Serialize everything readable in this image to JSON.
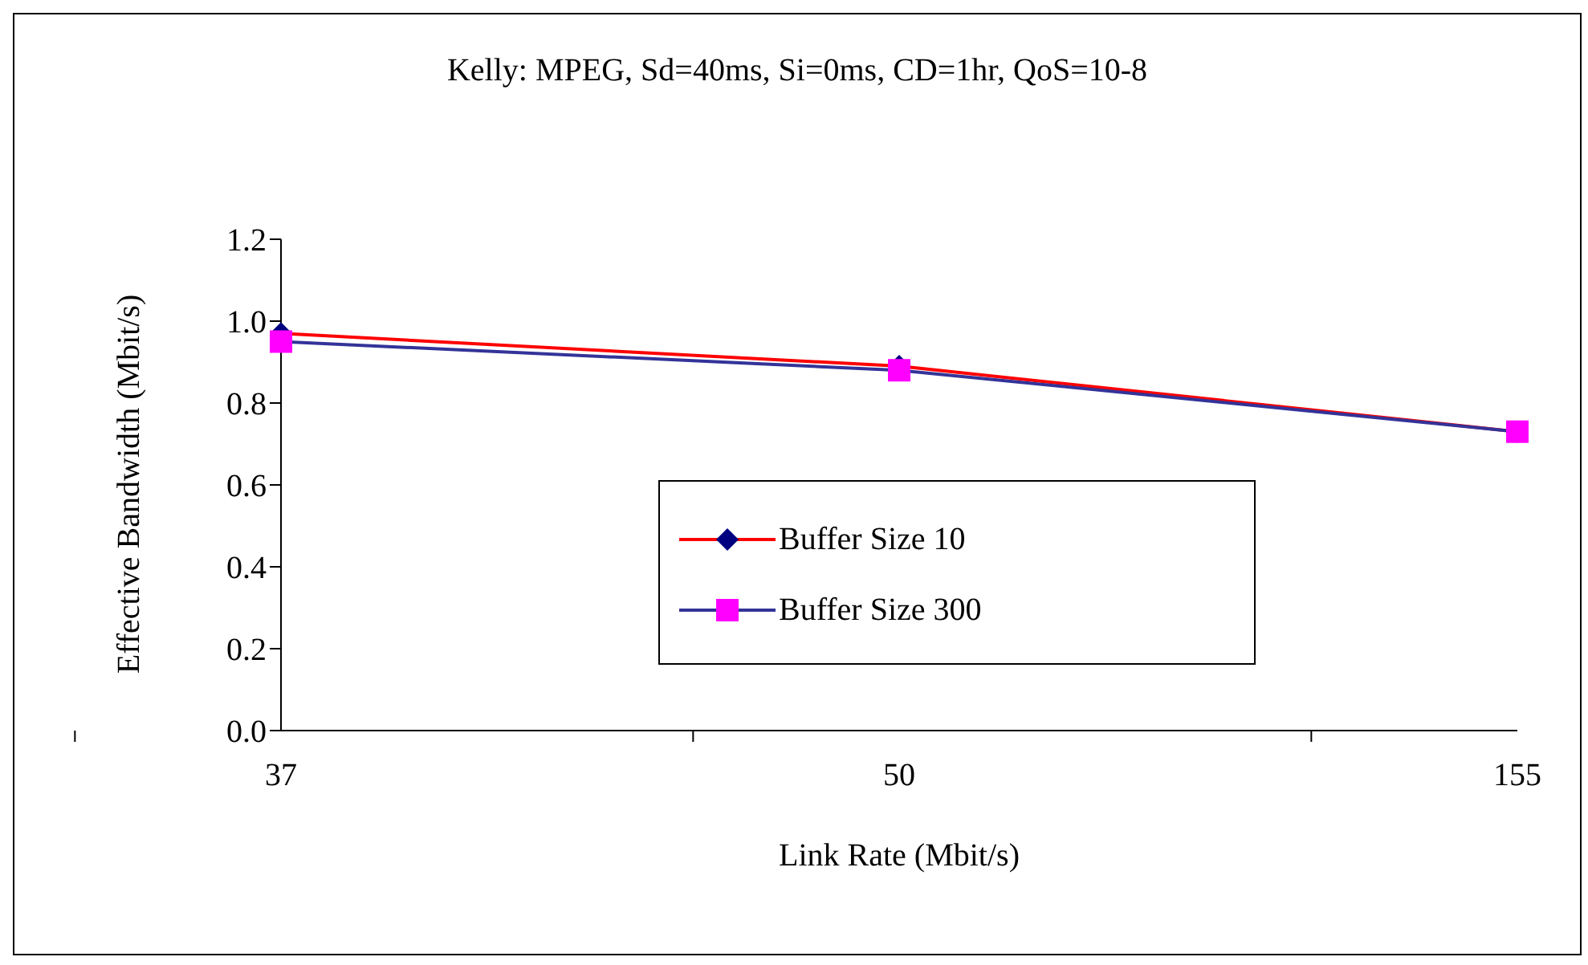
{
  "chart_data": {
    "type": "line",
    "title": "Kelly: MPEG, Sd=40ms,  Si=0ms, CD=1hr, QoS=10-8",
    "xlabel": "Link Rate (Mbit/s)",
    "ylabel": "Effective Bandwidth (Mbit/s)",
    "categories": [
      "37",
      "50",
      "155"
    ],
    "series": [
      {
        "name": "Buffer Size 10",
        "color": "#ff0000",
        "colors": [
          "#000080",
          "#000080",
          "#000080"
        ],
        "marker": "diamond",
        "values": [
          0.97,
          0.89,
          0.73
        ]
      },
      {
        "name": "Buffer Size 300",
        "color": "#333399",
        "colors": [
          "#ff00ff",
          "#ff00ff",
          "#ff00ff"
        ],
        "marker": "square",
        "values": [
          0.95,
          0.88,
          0.73
        ]
      }
    ],
    "ylim": [
      0,
      1.2
    ],
    "yticks": [
      {
        "value": 0,
        "label": "0.0"
      },
      {
        "value": 0.2,
        "label": "0.2"
      },
      {
        "value": 0.4,
        "label": "0.4"
      },
      {
        "value": 0.6,
        "label": "0.6"
      },
      {
        "value": 0.8,
        "label": "0.8"
      },
      {
        "value": 1.0,
        "label": "1.0"
      },
      {
        "value": 1.2,
        "label": "1.2"
      }
    ],
    "grid": false,
    "legend": "bottom"
  }
}
